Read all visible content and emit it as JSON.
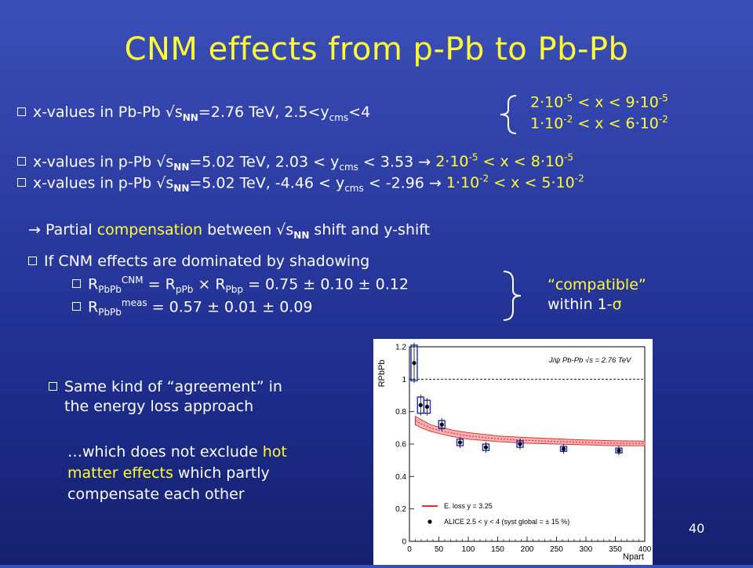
{
  "title": "CNM effects from p-Pb to Pb-Pb",
  "pbpb_line": {
    "lead": "x-values  in Pb-Pb ",
    "sqrt": "√",
    "s": "s",
    "nn": "NN",
    "mid": "=2.76 TeV, 2.5<y",
    "cms": "cms",
    "end": "<4"
  },
  "xranges": {
    "r1": {
      "a": "2·10",
      "ae": "-5",
      "mid": " < x < 9·10",
      "be": "-5"
    },
    "r2": {
      "a": "1·10",
      "ae": "-2",
      "mid": " < x < 6·10",
      "be": "-2"
    }
  },
  "ppb1": {
    "lead": "x-values in p-Pb ",
    "sqrt": "√",
    "s": "s",
    "nn": "NN",
    "mid": "=5.02 TeV, 2.03 < y",
    "cms": "cms",
    "end": " < 3.53 ",
    "arrow": "→",
    "range": {
      "a": "2·10",
      "ae": "-5",
      "mid": " < x < 8·10",
      "be": "-5"
    }
  },
  "ppb2": {
    "lead": "x-values in p-Pb ",
    "sqrt": "√",
    "s": "s",
    "nn": "NN",
    "mid": "=5.02 TeV, -4.46 < y",
    "cms": "cms",
    "end": " < -2.96 ",
    "arrow": "→",
    "range": {
      "a": "1·10",
      "ae": "-2",
      "mid": " < x < 5·10",
      "be": "-2"
    }
  },
  "partial": {
    "arrow": "→",
    "pre": " Partial ",
    "hl": "compensation",
    "mid": " between ",
    "sqrt": "√",
    "s": "s",
    "nn": "NN",
    "post": " shift and y-shift"
  },
  "shadow": {
    "head": "If CNM effects are dominated by shadowing",
    "r1": {
      "R": "R",
      "sub": "PbPb",
      "sup": "CNM",
      "eq": " = R",
      "sub2": "pPb",
      "times": " × ",
      "R2": "R",
      "sub3": "Pbp",
      "val": " =  0.75 ± 0.10 ± 0.12"
    },
    "r2": {
      "R": "R",
      "sub": "PbPb",
      "sup": "meas",
      "val": " = 0.57 ± 0.01 ± 0.09"
    }
  },
  "compatible": {
    "l1": "“compatible”",
    "l2": "within 1-",
    "sigma": "σ"
  },
  "same_kind": {
    "l1": "Same kind of “agreement” in",
    "l2": "the energy loss approach"
  },
  "which": {
    "l1a": "…which does not exclude ",
    "l1b": "hot",
    "l2a": "matter effects",
    "l2b": " which partly",
    "l3": "compensate each other"
  },
  "page_number": "40",
  "chart_data": {
    "type": "scatter",
    "title": "J/ψ  Pb-Pb  √s = 2.76 TeV",
    "xlabel": "N",
    "xlabel_sub": "part",
    "ylabel": "R",
    "ylabel_sub": "PbPb",
    "xlim": [
      0,
      400
    ],
    "ylim": [
      0,
      1.2
    ],
    "xticks": [
      "0",
      "50",
      "100",
      "150",
      "200",
      "250",
      "300",
      "350",
      "400"
    ],
    "yticks": [
      "0",
      "0.2",
      "0.4",
      "0.6",
      "0.8",
      "1",
      "1.2"
    ],
    "data_series": {
      "name": "ALICE 2.5 < y < 4 (syst global = ± 15 %)",
      "points": [
        {
          "x": 8,
          "y": 1.1,
          "syst": 0.11
        },
        {
          "x": 19,
          "y": 0.84,
          "syst": 0.05
        },
        {
          "x": 30,
          "y": 0.83,
          "syst": 0.04
        },
        {
          "x": 55,
          "y": 0.72,
          "syst": 0.025
        },
        {
          "x": 86,
          "y": 0.61,
          "syst": 0.02
        },
        {
          "x": 130,
          "y": 0.58,
          "syst": 0.02
        },
        {
          "x": 188,
          "y": 0.6,
          "syst": 0.02
        },
        {
          "x": 262,
          "y": 0.57,
          "syst": 0.015
        },
        {
          "x": 356,
          "y": 0.56,
          "syst": 0.015
        }
      ]
    },
    "model": {
      "name": "E. loss y = 3.25",
      "color": "#e23030",
      "x": [
        10,
        20,
        35,
        50,
        75,
        100,
        150,
        200,
        250,
        300,
        350,
        400
      ],
      "lo": [
        0.72,
        0.7,
        0.68,
        0.665,
        0.645,
        0.63,
        0.615,
        0.605,
        0.6,
        0.595,
        0.59,
        0.59
      ],
      "hi": [
        0.77,
        0.75,
        0.72,
        0.705,
        0.685,
        0.67,
        0.65,
        0.64,
        0.632,
        0.625,
        0.62,
        0.618
      ]
    }
  }
}
